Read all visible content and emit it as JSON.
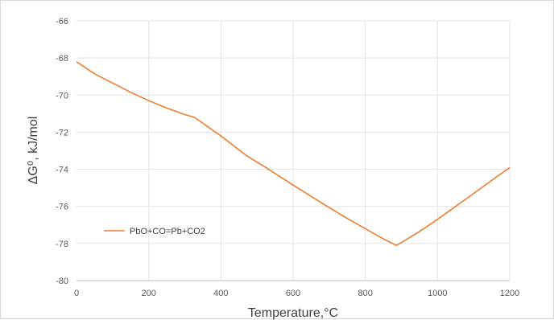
{
  "chart_data": {
    "type": "line",
    "title": "",
    "xlabel": "Temperature,°C",
    "ylabel": "ΔG⁰, kJ/mol",
    "xlim": [
      0,
      1200
    ],
    "ylim": [
      -80,
      -66
    ],
    "xticks": [
      0,
      200,
      400,
      600,
      800,
      1000,
      1200
    ],
    "yticks": [
      -80,
      -78,
      -76,
      -74,
      -72,
      -70,
      -68,
      -66
    ],
    "grid": true,
    "legend_position": "left-middle",
    "series": [
      {
        "name": "PbO+CO=Pb+CO2",
        "color": "#ed7d31",
        "x": [
          0,
          50,
          100,
          150,
          200,
          250,
          300,
          327,
          400,
          470,
          520,
          600,
          686,
          750,
          800,
          850,
          886,
          900,
          950,
          1000,
          1050,
          1100,
          1150,
          1200
        ],
        "y": [
          -68.2,
          -68.85,
          -69.35,
          -69.85,
          -70.3,
          -70.7,
          -71.05,
          -71.2,
          -72.2,
          -73.25,
          -73.85,
          -74.85,
          -75.9,
          -76.65,
          -77.2,
          -77.75,
          -78.1,
          -77.95,
          -77.35,
          -76.7,
          -76.0,
          -75.3,
          -74.6,
          -73.9
        ]
      }
    ]
  }
}
